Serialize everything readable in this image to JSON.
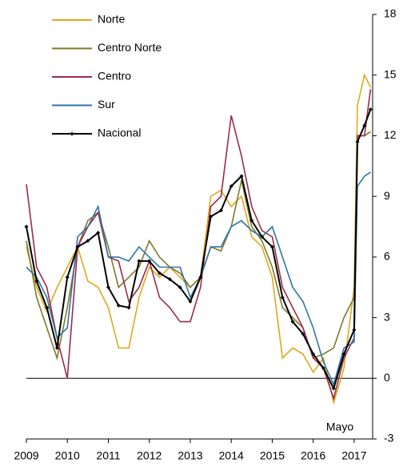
{
  "chart_data": {
    "type": "line",
    "x": [
      2009,
      2009.25,
      2009.5,
      2009.75,
      2010,
      2010.25,
      2010.5,
      2010.75,
      2011,
      2011.25,
      2011.5,
      2011.75,
      2012,
      2012.25,
      2012.5,
      2012.75,
      2013,
      2013.25,
      2013.5,
      2013.75,
      2014,
      2014.25,
      2014.5,
      2014.75,
      2015,
      2015.25,
      2015.5,
      2015.75,
      2016,
      2016.25,
      2016.5,
      2016.75,
      2017,
      2017.08,
      2017.25,
      2017.4
    ],
    "series": [
      {
        "name": "Norte",
        "color": "#e0a81c",
        "values": [
          6.5,
          4.5,
          3.3,
          4.5,
          5.5,
          6.5,
          4.8,
          4.5,
          3.5,
          1.5,
          1.5,
          4.0,
          5.5,
          5.0,
          5.5,
          5.0,
          4.5,
          5.0,
          9.0,
          9.3,
          8.5,
          9.0,
          7.0,
          6.5,
          5.0,
          1.0,
          1.5,
          1.2,
          0.3,
          1.0,
          -1.2,
          0.5,
          4.5,
          13.5,
          15.0,
          14.4
        ]
      },
      {
        "name": "Centro Norte",
        "color": "#7f7a2a",
        "values": [
          6.8,
          4.0,
          2.5,
          1.0,
          3.5,
          6.5,
          7.8,
          8.2,
          6.5,
          4.5,
          5.0,
          5.5,
          6.8,
          6.0,
          5.5,
          5.2,
          4.5,
          5.0,
          6.5,
          6.3,
          7.5,
          9.8,
          7.5,
          6.8,
          5.5,
          3.5,
          3.0,
          2.5,
          1.0,
          1.2,
          1.5,
          3.0,
          4.0,
          12.0,
          12.0,
          12.2
        ]
      },
      {
        "name": "Centro",
        "color": "#9b2b4a",
        "values": [
          9.6,
          5.5,
          4.5,
          2.0,
          0.0,
          6.5,
          7.5,
          8.2,
          6.0,
          5.8,
          3.8,
          4.5,
          5.8,
          4.0,
          3.5,
          2.8,
          2.8,
          4.5,
          8.5,
          9.0,
          13.0,
          11.0,
          8.5,
          7.3,
          7.0,
          4.5,
          3.5,
          2.5,
          1.0,
          0.5,
          -1.0,
          1.0,
          2.0,
          12.0,
          12.0,
          14.3
        ]
      },
      {
        "name": "Sur",
        "color": "#2e75a6",
        "values": [
          5.5,
          5.0,
          4.0,
          2.0,
          2.5,
          7.0,
          7.5,
          8.5,
          6.0,
          6.0,
          5.8,
          6.5,
          6.0,
          5.5,
          5.5,
          5.5,
          4.0,
          5.0,
          6.5,
          6.5,
          7.5,
          7.8,
          7.3,
          7.0,
          7.5,
          6.0,
          4.5,
          3.8,
          2.5,
          0.8,
          -0.3,
          1.5,
          1.8,
          9.5,
          10.0,
          10.2
        ]
      },
      {
        "name": "Nacional",
        "color": "#000000",
        "markers": true,
        "values": [
          7.5,
          4.8,
          3.5,
          1.5,
          5.0,
          6.5,
          6.8,
          7.2,
          4.5,
          3.6,
          3.5,
          5.8,
          5.8,
          5.2,
          4.9,
          4.5,
          3.8,
          5.0,
          8.0,
          8.3,
          9.5,
          10.0,
          7.8,
          7.0,
          6.5,
          4.0,
          2.8,
          2.2,
          1.2,
          0.5,
          -0.5,
          1.2,
          2.4,
          11.7,
          12.5,
          13.3
        ]
      }
    ],
    "xlim": [
      2009,
      2017.45
    ],
    "xticks": [
      2009,
      2010,
      2011,
      2012,
      2013,
      2014,
      2015,
      2016,
      2017
    ],
    "ylim": [
      -3,
      18
    ],
    "yticks": [
      -3,
      0,
      3,
      6,
      9,
      12,
      15,
      18
    ],
    "y_axis_side": "right",
    "zero_line": true,
    "annotations": [
      "Mayo"
    ]
  }
}
